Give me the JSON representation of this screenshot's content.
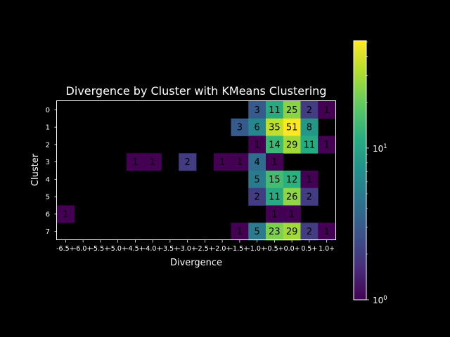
{
  "chart_data": {
    "type": "heatmap",
    "title": "Divergence by Cluster with KMeans Clustering",
    "xlabel": "Divergence",
    "ylabel": "Cluster",
    "x_categories": [
      "-6.5+",
      "-6.0+",
      "-5.5+",
      "-5.0+",
      "-4.5+",
      "-4.0+",
      "-3.5+",
      "-3.0+",
      "-2.5+",
      "-2.0+",
      "-1.5+",
      "-1.0+",
      "-0.5+",
      "0.0+",
      "0.5+",
      "1.0+"
    ],
    "y_categories": [
      "0",
      "1",
      "2",
      "3",
      "4",
      "5",
      "6",
      "7"
    ],
    "values": [
      [
        null,
        null,
        null,
        null,
        null,
        null,
        null,
        null,
        null,
        null,
        null,
        3,
        11,
        25,
        2,
        1
      ],
      [
        null,
        null,
        null,
        null,
        null,
        null,
        null,
        null,
        null,
        null,
        3,
        6,
        35,
        51,
        8,
        null
      ],
      [
        null,
        null,
        null,
        null,
        null,
        null,
        null,
        null,
        null,
        null,
        null,
        1,
        14,
        29,
        11,
        1
      ],
      [
        null,
        null,
        null,
        null,
        1,
        1,
        null,
        2,
        null,
        1,
        1,
        4,
        1,
        null,
        null,
        null
      ],
      [
        null,
        null,
        null,
        null,
        null,
        null,
        null,
        null,
        null,
        null,
        null,
        5,
        15,
        12,
        1,
        null
      ],
      [
        null,
        null,
        null,
        null,
        null,
        null,
        null,
        null,
        null,
        null,
        null,
        2,
        11,
        26,
        2,
        null
      ],
      [
        1,
        null,
        null,
        null,
        null,
        null,
        null,
        null,
        null,
        null,
        null,
        null,
        1,
        1,
        null,
        null
      ],
      [
        null,
        null,
        null,
        null,
        null,
        null,
        null,
        null,
        null,
        null,
        1,
        5,
        23,
        29,
        2,
        1
      ]
    ],
    "colorscale": "viridis",
    "color_scale_type": "log",
    "color_range": [
      1,
      51
    ],
    "colorbar_ticks": [
      "10^0",
      "10^1"
    ],
    "grid": false
  }
}
